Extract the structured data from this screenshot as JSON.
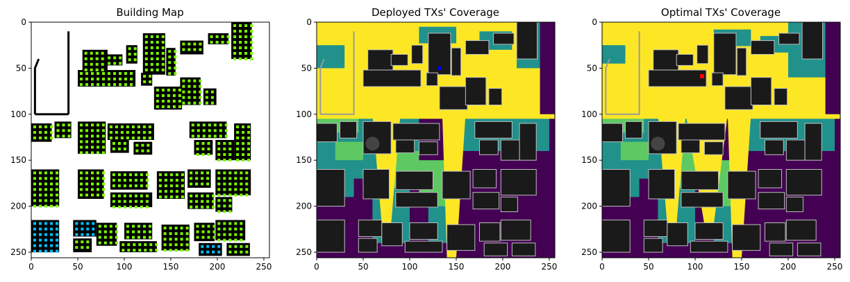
{
  "chart_data": [
    {
      "type": "heatmap",
      "title": "Building Map",
      "xlim": [
        0,
        256
      ],
      "ylim": [
        256,
        0
      ],
      "xticks": [
        0,
        50,
        100,
        150,
        200,
        250
      ],
      "yticks": [
        0,
        50,
        100,
        150,
        200,
        250
      ],
      "grid": false,
      "colors": {
        "building": "#000000",
        "free": "#ffffff",
        "candidate": "#7cfc00",
        "alt_candidate": "#00bfff"
      }
    },
    {
      "type": "heatmap",
      "title": "Deployed TXs' Coverage",
      "xlim": [
        0,
        256
      ],
      "ylim": [
        256,
        0
      ],
      "xticks": [
        0,
        50,
        100,
        150,
        200,
        250
      ],
      "yticks": [
        0,
        50,
        100,
        150,
        200,
        250
      ],
      "grid": false,
      "colors": {
        "high": "#fde725",
        "mid_high": "#5ec962",
        "mid": "#21918c",
        "low": "#440154",
        "building": "#1a1a1a",
        "tx": "#0000ff"
      }
    },
    {
      "type": "heatmap",
      "title": "Optimal TXs' Coverage",
      "xlim": [
        0,
        256
      ],
      "ylim": [
        256,
        0
      ],
      "xticks": [
        0,
        50,
        100,
        150,
        200,
        250
      ],
      "yticks": [
        0,
        50,
        100,
        150,
        200,
        250
      ],
      "grid": false,
      "colors": {
        "high": "#fde725",
        "mid_high": "#5ec962",
        "mid": "#21918c",
        "low": "#440154",
        "building": "#1a1a1a",
        "tx": "#ff0000"
      }
    }
  ]
}
